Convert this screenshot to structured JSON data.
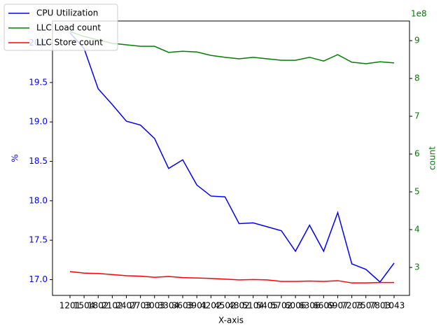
{
  "chart_data": {
    "type": "line",
    "xlabel": "X-axis",
    "ylabel": "%",
    "y2label": "count",
    "y2offset": "1e8",
    "categories": [
      "1201",
      "1504",
      "1802",
      "2102",
      "2407",
      "2703",
      "3003",
      "3304",
      "3603",
      "3901",
      "4202",
      "4502",
      "4802",
      "5104",
      "5405",
      "5702",
      "6006",
      "6306",
      "6609",
      "6907",
      "7203",
      "7507",
      "7803",
      "1043"
    ],
    "ylim": [
      16.8,
      20.28
    ],
    "yticks": [
      {
        "value": 17,
        "label": "17.0"
      },
      17.5,
      {
        "value": 18,
        "label": "18.0"
      },
      18.5,
      {
        "value": 19,
        "label": "19.0"
      },
      19.5,
      {
        "value": 20,
        "label": "20.0"
      }
    ],
    "y2lim": [
      226000000,
      952000000
    ],
    "y2ticks": [
      {
        "value": 300000000,
        "label": "3"
      },
      {
        "value": 400000000,
        "label": "4"
      },
      {
        "value": 500000000,
        "label": "5"
      },
      {
        "value": 600000000,
        "label": "6"
      },
      {
        "value": 700000000,
        "label": "7"
      },
      {
        "value": 800000000,
        "label": "8"
      },
      {
        "value": 900000000,
        "label": "9"
      }
    ],
    "legend": "upper left",
    "series": [
      {
        "name": "CPU Utilization",
        "color": "#0000ff",
        "axis": "y",
        "values": [
          20.13,
          19.93,
          19.42,
          19.22,
          19.01,
          18.96,
          18.79,
          18.41,
          18.52,
          18.2,
          18.06,
          18.05,
          17.71,
          17.72,
          17.67,
          17.62,
          17.36,
          17.69,
          17.36,
          17.85,
          17.2,
          17.13,
          16.97,
          17.21
        ]
      },
      {
        "name": "LLC Load count",
        "color": "#008000",
        "axis": "y2",
        "values": [
          924000000,
          911000000,
          902000000,
          893000000,
          889000000,
          885000000,
          885000000,
          869000000,
          872000000,
          870000000,
          861000000,
          856000000,
          852000000,
          856000000,
          852000000,
          848000000,
          848000000,
          856000000,
          846000000,
          863000000,
          843000000,
          839000000,
          844000000,
          841000000
        ]
      },
      {
        "name": "LLC Store count",
        "color": "#ff0000",
        "axis": "y2",
        "values": [
          289000000,
          285000000,
          284000000,
          281000000,
          278000000,
          277000000,
          274000000,
          276000000,
          273000000,
          272000000,
          271000000,
          269000000,
          267000000,
          268000000,
          267000000,
          263000000,
          263000000,
          264000000,
          263000000,
          265000000,
          259000000,
          259000000,
          260000000,
          260000000
        ]
      }
    ]
  }
}
